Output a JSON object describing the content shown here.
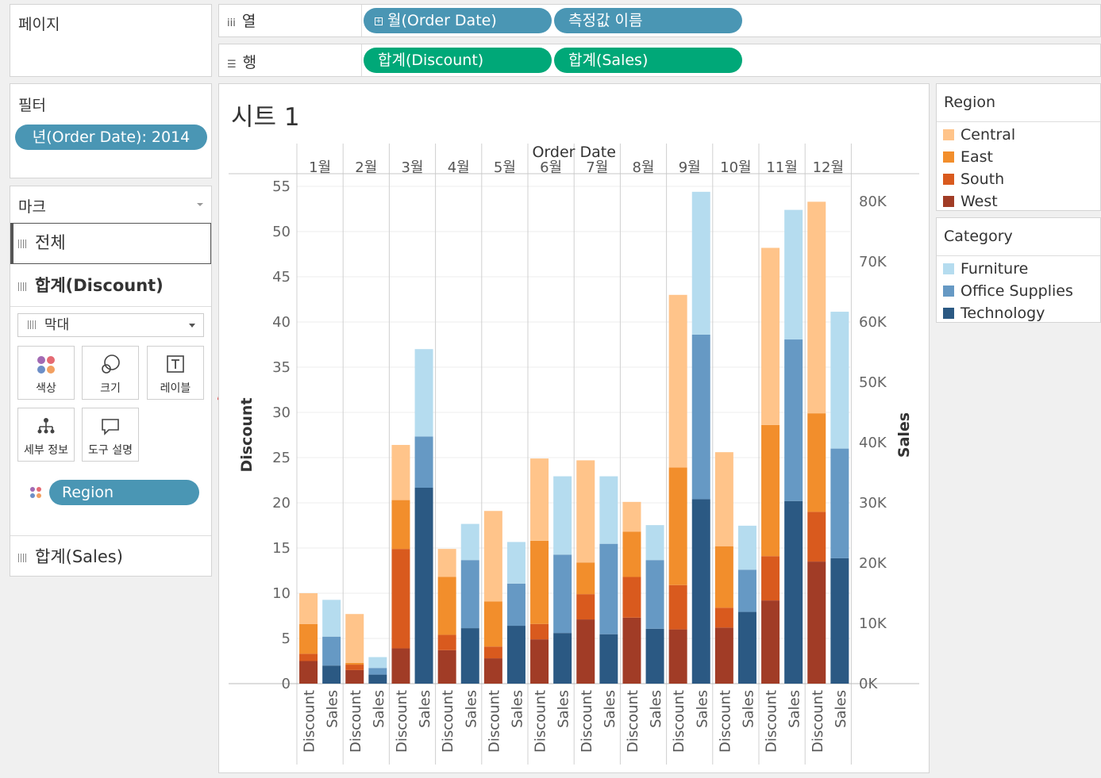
{
  "pages_panel": {
    "title": "페이지"
  },
  "filters_panel": {
    "title": "필터",
    "filter_pill": "년(Order Date): 2014"
  },
  "marks_panel": {
    "title": "마크",
    "tab_all": "전체",
    "tab_discount": "합계(Discount)",
    "tab_sales": "합계(Sales)",
    "mark_type": "막대",
    "buttons": {
      "color": "색상",
      "size": "크기",
      "label": "레이블",
      "detail": "세부 정보",
      "tooltip": "도구 설명"
    },
    "color_pill": "Region"
  },
  "shelves": {
    "columns_label": "열",
    "columns_pills": [
      "월(Order Date)",
      "측정값 이름"
    ],
    "rows_label": "행",
    "rows_pills": [
      "합계(Discount)",
      "합계(Sales)"
    ]
  },
  "sheet": {
    "title": "시트 1"
  },
  "legends": {
    "region": {
      "title": "Region",
      "items": [
        {
          "label": "Central",
          "color": "#ffc48a"
        },
        {
          "label": "East",
          "color": "#f28e2c"
        },
        {
          "label": "South",
          "color": "#d95a1e"
        },
        {
          "label": "West",
          "color": "#a13c26"
        }
      ]
    },
    "category": {
      "title": "Category",
      "items": [
        {
          "label": "Furniture",
          "color": "#b5dcef"
        },
        {
          "label": "Office Supplies",
          "color": "#6699c4"
        },
        {
          "label": "Technology",
          "color": "#2b5983"
        }
      ]
    }
  },
  "chart_data": {
    "type": "bar",
    "stacked": true,
    "x_header": "Order Date",
    "categories": [
      "1월",
      "2월",
      "3월",
      "4월",
      "5월",
      "6월",
      "7월",
      "8월",
      "9월",
      "10월",
      "11월",
      "12월"
    ],
    "sub_categories": [
      "Discount",
      "Sales"
    ],
    "ylabel_left": "Discount",
    "ylabel_right": "Sales",
    "ylim_left": [
      0,
      55
    ],
    "yticks_left": [
      0,
      5,
      10,
      15,
      20,
      25,
      30,
      35,
      40,
      45,
      50,
      55
    ],
    "ylim_right": [
      0,
      82500
    ],
    "yticks_right": [
      0,
      10000,
      20000,
      30000,
      40000,
      50000,
      60000,
      70000,
      80000
    ],
    "yticks_right_labels": [
      "0K",
      "10K",
      "20K",
      "30K",
      "40K",
      "50K",
      "60K",
      "70K",
      "80K"
    ],
    "discount_series": [
      {
        "name": "West",
        "values": [
          2.5,
          1.5,
          3.9,
          3.7,
          2.8,
          4.9,
          7.1,
          7.3,
          6.0,
          6.2,
          9.2,
          13.5
        ]
      },
      {
        "name": "South",
        "values": [
          0.8,
          0.6,
          11.0,
          1.7,
          1.3,
          1.7,
          2.8,
          4.5,
          4.9,
          2.2,
          4.9,
          5.5
        ]
      },
      {
        "name": "East",
        "values": [
          3.3,
          0.2,
          5.4,
          6.4,
          5.0,
          9.2,
          3.5,
          5.0,
          13.0,
          6.8,
          14.5,
          10.9
        ]
      },
      {
        "name": "Central",
        "values": [
          3.4,
          5.4,
          6.1,
          3.1,
          10.0,
          9.1,
          11.3,
          3.3,
          19.1,
          10.4,
          19.6,
          23.4
        ]
      }
    ],
    "sales_series": [
      {
        "name": "Technology",
        "values": [
          3000,
          1500,
          32500,
          9200,
          9600,
          8400,
          8200,
          9100,
          30600,
          11900,
          30300,
          20800
        ]
      },
      {
        "name": "Office Supplies",
        "values": [
          4800,
          1100,
          8500,
          11300,
          7000,
          13000,
          15000,
          11400,
          27300,
          7000,
          26800,
          18200
        ]
      },
      {
        "name": "Furniture",
        "values": [
          6100,
          1800,
          14500,
          6000,
          6900,
          13000,
          11200,
          5800,
          23700,
          7300,
          21500,
          22700
        ]
      }
    ]
  }
}
